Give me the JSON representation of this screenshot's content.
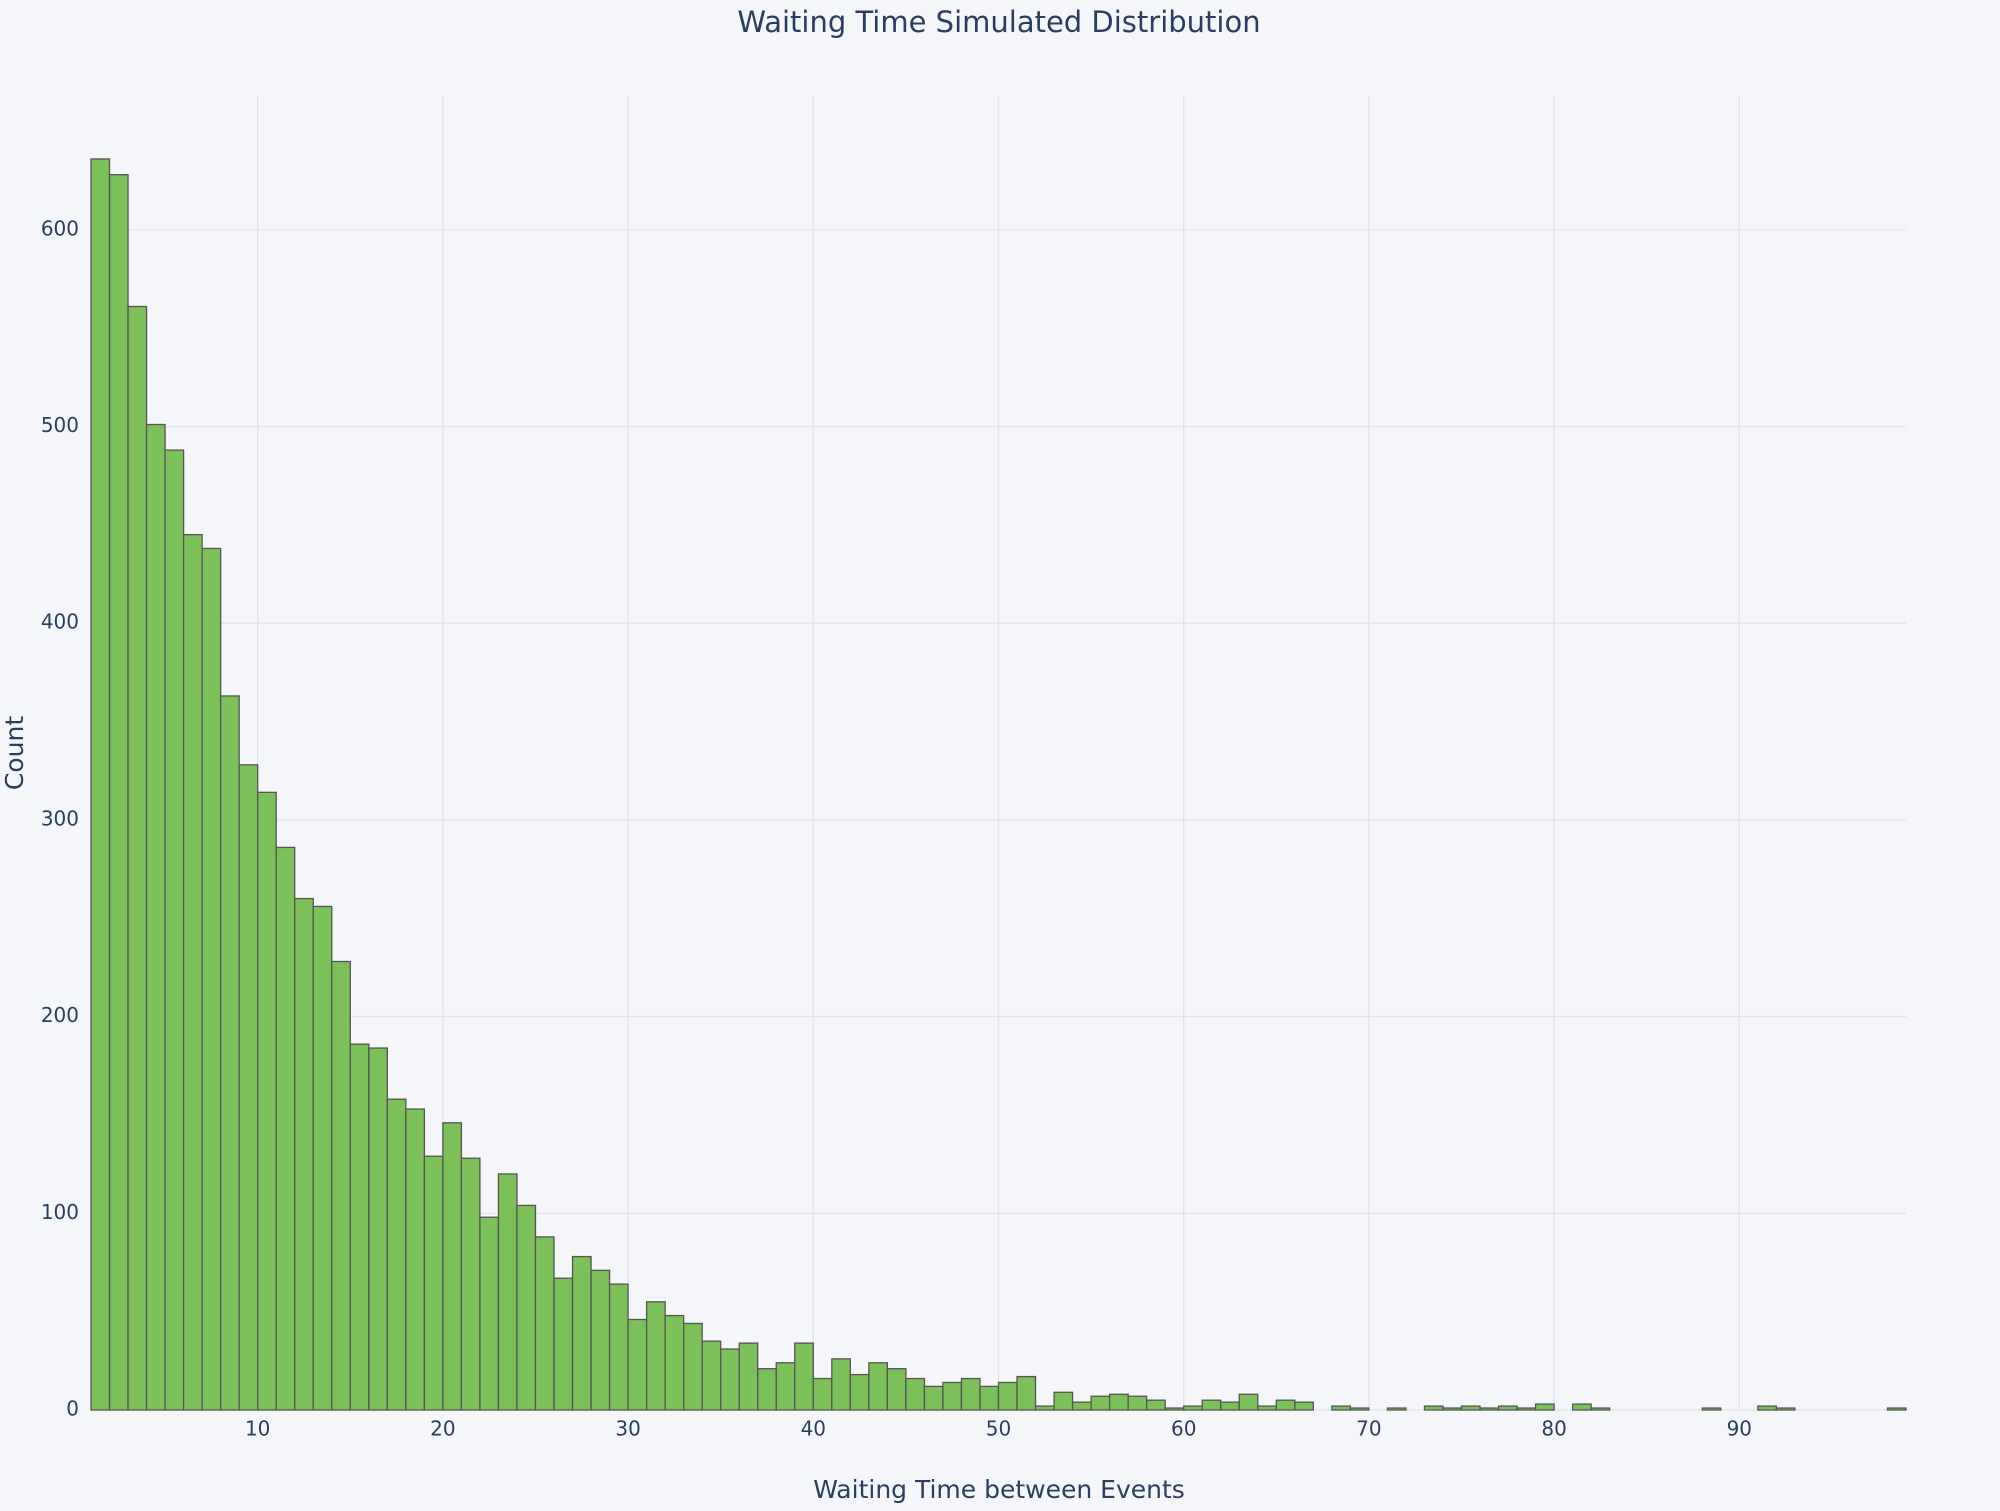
{
  "chart_data": {
    "type": "histogram",
    "title": "Waiting Time Simulated Distribution",
    "x_label": "Waiting Time between Events",
    "y_label": "Count",
    "color": "#7cc05a",
    "edge_color": "#555555",
    "grid": true,
    "bins": [
      1,
      2,
      3,
      4,
      5,
      6,
      7,
      8,
      9,
      10,
      11,
      12,
      13,
      14,
      15,
      16,
      17,
      18,
      19,
      20,
      21,
      22,
      23,
      24,
      25,
      26,
      27,
      28,
      29,
      30,
      31,
      32,
      33,
      34,
      35,
      36,
      37,
      38,
      39,
      40,
      41,
      42,
      43,
      44,
      45,
      46,
      47,
      48,
      49,
      50,
      51,
      52,
      53,
      54,
      55,
      56,
      57,
      58,
      59,
      60,
      61,
      62,
      63,
      64,
      65,
      66,
      67,
      68,
      69,
      70,
      71,
      72,
      73,
      74,
      75,
      76,
      77,
      78,
      79,
      80,
      81,
      82,
      83,
      84,
      85,
      86,
      87,
      88,
      89,
      90,
      91,
      92,
      93,
      94,
      95,
      96,
      97,
      98,
      99
    ],
    "values": [
      636,
      628,
      561,
      501,
      488,
      445,
      438,
      363,
      328,
      314,
      286,
      260,
      256,
      228,
      186,
      184,
      158,
      153,
      129,
      146,
      128,
      98,
      120,
      104,
      88,
      67,
      78,
      71,
      64,
      46,
      55,
      48,
      44,
      35,
      31,
      34,
      21,
      24,
      34,
      16,
      26,
      18,
      24,
      21,
      16,
      12,
      14,
      16,
      12,
      14,
      17,
      2,
      9,
      4,
      7,
      8,
      7,
      5,
      1,
      2,
      5,
      4,
      8,
      2,
      5,
      4,
      0,
      2,
      1,
      0,
      1,
      0,
      2,
      1,
      2,
      1,
      2,
      1,
      3,
      0,
      3,
      1,
      0,
      0,
      0,
      0,
      0,
      1,
      0,
      0,
      2,
      1,
      0,
      0,
      0,
      0,
      0,
      1
    ],
    "xlim": [
      1,
      99
    ],
    "ylim": [
      0,
      668
    ],
    "xticks": [
      10,
      20,
      30,
      40,
      50,
      60,
      70,
      80,
      90
    ],
    "yticks": [
      0,
      100,
      200,
      300,
      400,
      500,
      600
    ]
  }
}
